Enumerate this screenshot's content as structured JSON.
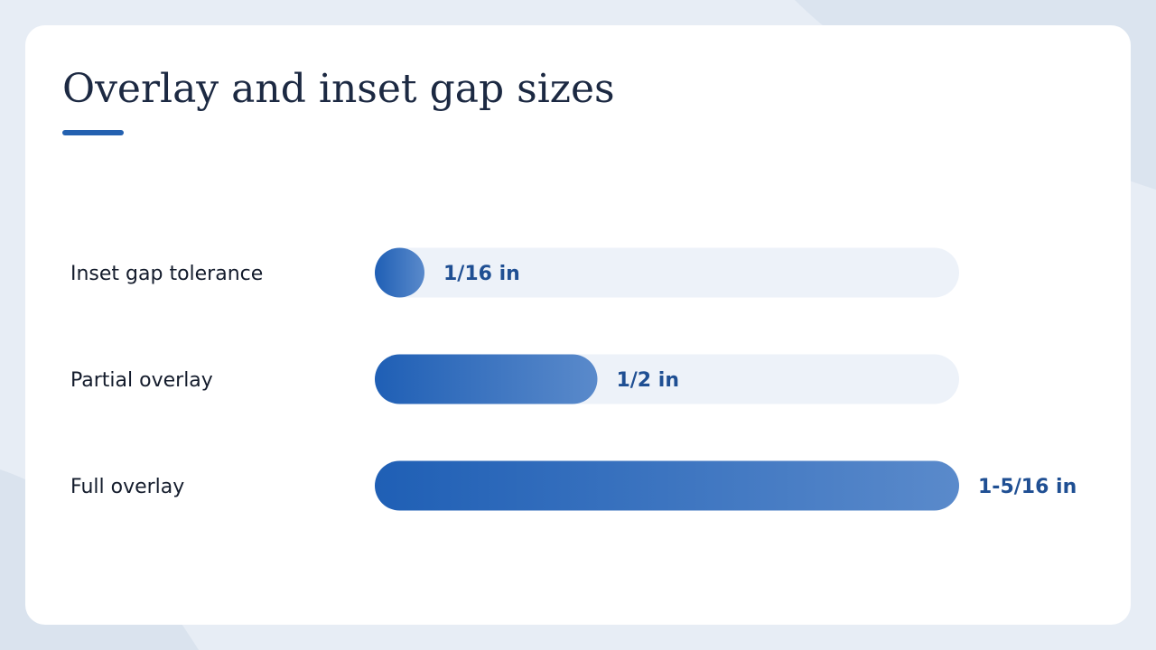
{
  "chart_data": {
    "type": "bar",
    "orientation": "horizontal",
    "title": "Overlay and inset gap sizes",
    "categories": [
      "Inset gap tolerance",
      "Partial overlay",
      "Full overlay"
    ],
    "values": [
      0.0625,
      0.5,
      1.3125
    ],
    "value_labels": [
      "1/16 in",
      "1/2 in",
      "1-5/16 in"
    ],
    "color": "#1f5fb5"
  }
}
